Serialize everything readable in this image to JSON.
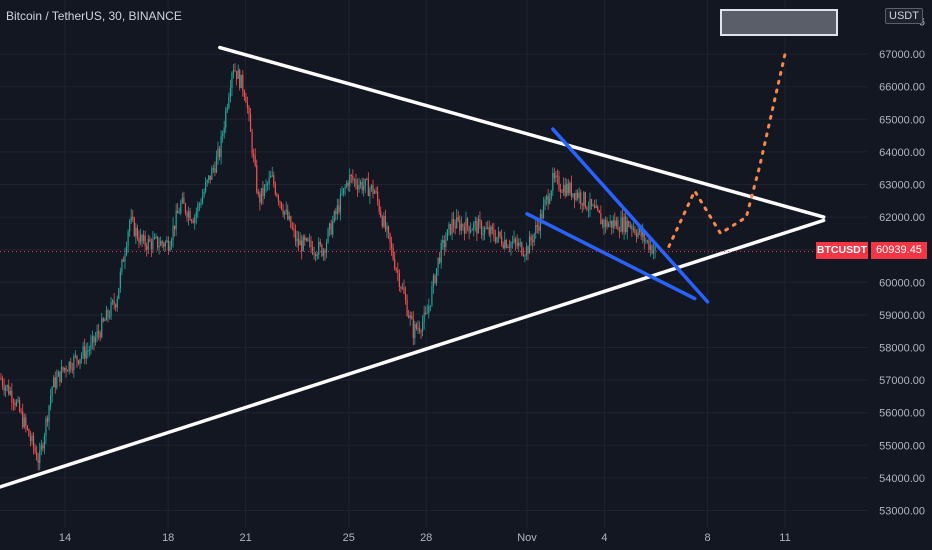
{
  "header": {
    "symbol_title": "Bitcoin / TetherUS, 30, BINANCE",
    "currency_badge": "USDT"
  },
  "last_price": {
    "symbol": "BTCUSDT",
    "value": "60939.45",
    "color": "#f23645"
  },
  "colors": {
    "background": "#131722",
    "up_candle": "#26a69a",
    "down_candle": "#ef5350",
    "triangle_line": "#ffffff",
    "wedge_line": "#2962ff",
    "projection": "#f7874a"
  },
  "chart_data": {
    "type": "candlestick",
    "title": "",
    "xlabel": "",
    "ylabel": "",
    "x_ticks": [
      "14",
      "18",
      "21",
      "25",
      "28",
      "Nov",
      "4",
      "8",
      "11"
    ],
    "y_ticks": [
      "53000.00",
      "54000.00",
      "55000.00",
      "56000.00",
      "57000.00",
      "58000.00",
      "59000.00",
      "60000.00",
      "61000.00",
      "62000.00",
      "63000.00",
      "64000.00",
      "65000.00",
      "66000.00",
      "67000.00"
    ],
    "ylim": [
      52700,
      68300
    ],
    "grid": true,
    "price_path_approx": [
      {
        "t": "Oct 11",
        "price": 57600
      },
      {
        "t": "Oct 12",
        "price": 56500
      },
      {
        "t": "Oct 13",
        "price": 54500
      },
      {
        "t": "Oct 13.5",
        "price": 56800
      },
      {
        "t": "Oct 14",
        "price": 57400
      },
      {
        "t": "Oct 15",
        "price": 58000
      },
      {
        "t": "Oct 16",
        "price": 59500
      },
      {
        "t": "Oct 16.5",
        "price": 61900
      },
      {
        "t": "Oct 17",
        "price": 61200
      },
      {
        "t": "Oct 18",
        "price": 61200
      },
      {
        "t": "Oct 18.5",
        "price": 62400
      },
      {
        "t": "Oct 19",
        "price": 62000
      },
      {
        "t": "Oct 20",
        "price": 64000
      },
      {
        "t": "Oct 20.5",
        "price": 66700
      },
      {
        "t": "Oct 21",
        "price": 65800
      },
      {
        "t": "Oct 21.5",
        "price": 62500
      },
      {
        "t": "Oct 22",
        "price": 63200
      },
      {
        "t": "Oct 23",
        "price": 61200
      },
      {
        "t": "Oct 24",
        "price": 61000
      },
      {
        "t": "Oct 25",
        "price": 63200
      },
      {
        "t": "Oct 26",
        "price": 62800
      },
      {
        "t": "Oct 27",
        "price": 60000
      },
      {
        "t": "Oct 27.5",
        "price": 58500
      },
      {
        "t": "Oct 28",
        "price": 58900
      },
      {
        "t": "Oct 28.5",
        "price": 60800
      },
      {
        "t": "Oct 29",
        "price": 61800
      },
      {
        "t": "Oct 30",
        "price": 61700
      },
      {
        "t": "Oct 31",
        "price": 61300
      },
      {
        "t": "Nov 1",
        "price": 61000
      },
      {
        "t": "Nov 1.5",
        "price": 61900
      },
      {
        "t": "Nov 2",
        "price": 63100
      },
      {
        "t": "Nov 3",
        "price": 62700
      },
      {
        "t": "Nov 4",
        "price": 61800
      },
      {
        "t": "Nov 5",
        "price": 61800
      },
      {
        "t": "Nov 6",
        "price": 60939.45
      }
    ],
    "annotations": {
      "triangle_upper": [
        {
          "t": "Oct 20",
          "price": 67200
        },
        {
          "t": "Nov 12.5",
          "price": 62000
        }
      ],
      "triangle_lower": [
        {
          "t": "Oct 11",
          "price": 53600
        },
        {
          "t": "Nov 12.5",
          "price": 61900
        }
      ],
      "wedge_upper": [
        {
          "t": "Nov 2",
          "price": 64700
        },
        {
          "t": "Nov 8",
          "price": 59400
        }
      ],
      "wedge_lower": [
        {
          "t": "Nov 1",
          "price": 62100
        },
        {
          "t": "Nov 7.5",
          "price": 59500
        }
      ],
      "projection_path": [
        {
          "t": "Nov 6.5",
          "price": 61100
        },
        {
          "t": "Nov 7.5",
          "price": 62800
        },
        {
          "t": "Nov 8.5",
          "price": 61500
        },
        {
          "t": "Nov 9.5",
          "price": 62000
        },
        {
          "t": "Nov 10",
          "price": 63500
        },
        {
          "t": "Nov 11",
          "price": 67000
        }
      ]
    }
  }
}
